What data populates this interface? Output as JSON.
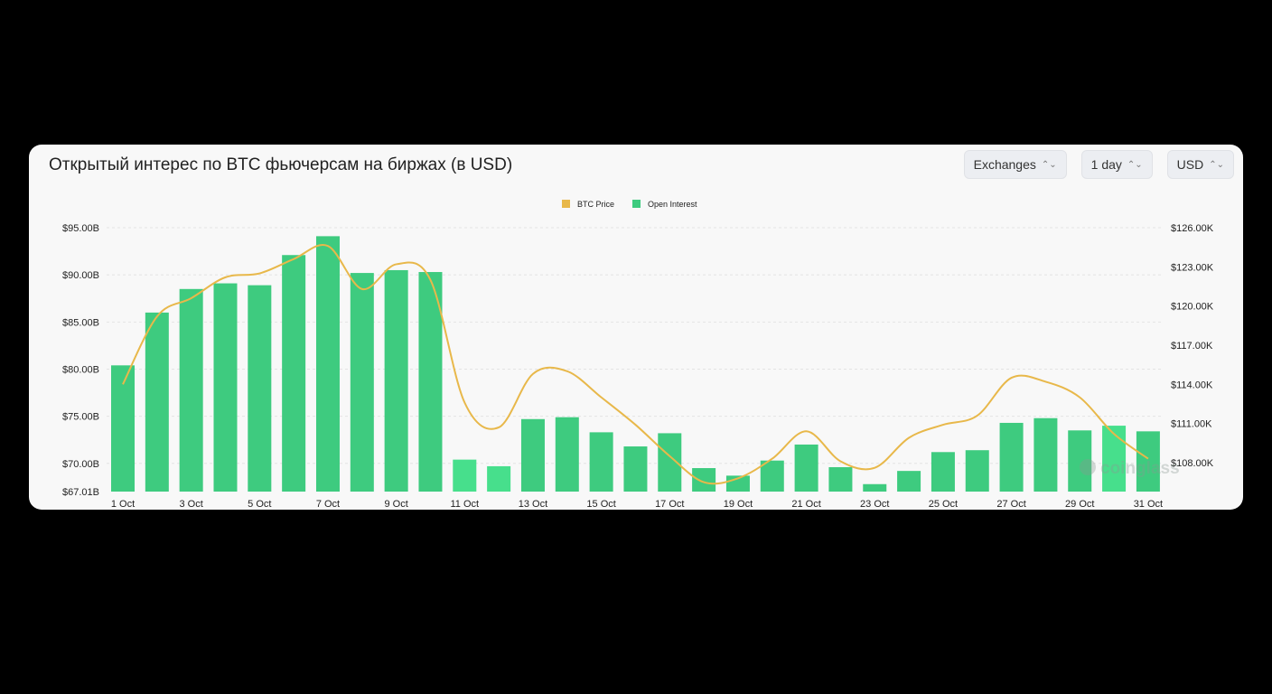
{
  "header": {
    "title": "Открытый интерес по BTC фьючерсам на биржах (в USD)"
  },
  "controls": {
    "exchanges": "Exchanges",
    "interval": "1 day",
    "currency": "USD"
  },
  "watermark": "coinglass",
  "colors": {
    "oi": "#3ecb7f",
    "oi_highlight": "#47df8c",
    "price": "#e8b84a"
  },
  "chart_data": {
    "type": "bar",
    "title": "Открытый интерес по BTC фьючерсам на биржах (в USD)",
    "legend": [
      "BTC Price",
      "Open Interest"
    ],
    "legend_position": "top",
    "categories": [
      "1 Oct",
      "2 Oct",
      "3 Oct",
      "4 Oct",
      "5 Oct",
      "6 Oct",
      "7 Oct",
      "8 Oct",
      "9 Oct",
      "10 Oct",
      "11 Oct",
      "12 Oct",
      "13 Oct",
      "14 Oct",
      "15 Oct",
      "16 Oct",
      "17 Oct",
      "18 Oct",
      "19 Oct",
      "20 Oct",
      "21 Oct",
      "22 Oct",
      "23 Oct",
      "24 Oct",
      "25 Oct",
      "26 Oct",
      "27 Oct",
      "28 Oct",
      "29 Oct",
      "30 Oct",
      "31 Oct"
    ],
    "x_tick_labels": [
      "1 Oct",
      "3 Oct",
      "5 Oct",
      "7 Oct",
      "9 Oct",
      "11 Oct",
      "13 Oct",
      "15 Oct",
      "17 Oct",
      "19 Oct",
      "21 Oct",
      "23 Oct",
      "25 Oct",
      "27 Oct",
      "29 Oct",
      "31 Oct"
    ],
    "series": [
      {
        "name": "Open Interest",
        "type": "bar",
        "axis": "left",
        "unit": "B USD",
        "values": [
          80.4,
          86.0,
          88.5,
          89.1,
          88.9,
          92.1,
          94.1,
          90.2,
          90.5,
          90.3,
          70.4,
          69.7,
          74.7,
          74.9,
          73.3,
          71.8,
          73.2,
          69.5,
          68.7,
          70.3,
          72.0,
          69.6,
          67.8,
          69.2,
          71.2,
          71.4,
          74.3,
          74.8,
          73.5,
          74.0,
          73.4
        ]
      },
      {
        "name": "BTC Price",
        "type": "line",
        "axis": "right",
        "unit": "K USD",
        "values": [
          114.0,
          119.2,
          120.6,
          122.2,
          122.5,
          123.6,
          124.6,
          121.3,
          123.2,
          122.0,
          112.6,
          110.7,
          114.8,
          115.0,
          113.0,
          110.9,
          108.5,
          106.5,
          106.8,
          108.3,
          110.4,
          108.1,
          107.6,
          109.9,
          110.9,
          111.6,
          114.5,
          114.2,
          113.0,
          110.2,
          108.3
        ]
      }
    ],
    "left_axis": {
      "ticks": [
        "$95.00B",
        "$90.00B",
        "$85.00B",
        "$80.00B",
        "$75.00B",
        "$70.00B",
        "$67.01B"
      ],
      "tick_values": [
        95,
        90,
        85,
        80,
        75,
        70,
        67.01
      ],
      "ylim": [
        67.01,
        95
      ]
    },
    "right_axis": {
      "ticks": [
        "$126.00K",
        "$123.00K",
        "$120.00K",
        "$117.00K",
        "$114.00K",
        "$111.00K",
        "$108.00K"
      ],
      "tick_values": [
        126,
        123,
        120,
        117,
        114,
        111,
        108
      ],
      "ylim": [
        105.78,
        126
      ]
    },
    "grid": true
  }
}
